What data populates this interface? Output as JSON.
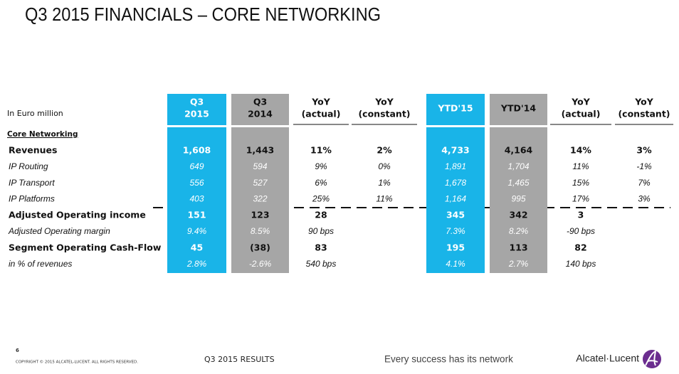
{
  "title": "Q3 2015 FINANCIALS – CORE NETWORKING",
  "unit_label": "In Euro million",
  "columns": [
    [
      "Q3",
      "2015"
    ],
    [
      "Q3",
      "2014"
    ],
    [
      "YoY",
      "(actual)"
    ],
    [
      "YoY",
      "(constant)"
    ],
    [
      "YTD'15"
    ],
    [
      "YTD'14"
    ],
    [
      "YoY",
      "(actual)"
    ],
    [
      "YoY",
      "(constant)"
    ]
  ],
  "section_label": "Core Networking",
  "rows": [
    {
      "label": "Revenues",
      "cells": [
        "1,608",
        "1,443",
        "11%",
        "2%",
        "4,733",
        "4,164",
        "14%",
        "3%"
      ]
    },
    {
      "label": "IP Routing",
      "cells": [
        "649",
        "594",
        "9%",
        "0%",
        "1,891",
        "1,704",
        "11%",
        "-1%"
      ]
    },
    {
      "label": "IP Transport",
      "cells": [
        "556",
        "527",
        "6%",
        "1%",
        "1,678",
        "1,465",
        "15%",
        "7%"
      ]
    },
    {
      "label": "IP Platforms",
      "cells": [
        "403",
        "322",
        "25%",
        "11%",
        "1,164",
        "995",
        "17%",
        "3%"
      ]
    },
    {
      "label": "Adjusted Operating income",
      "cells": [
        "151",
        "123",
        "28",
        null,
        "345",
        "342",
        "3",
        null
      ]
    },
    {
      "label": "Adjusted Operating margin",
      "cells": [
        "9.4%",
        "8.5%",
        "90 bps",
        null,
        "7.3%",
        "8.2%",
        "-90 bps",
        null
      ]
    },
    {
      "label": "Segment Operating Cash-Flow",
      "cells": [
        "45",
        "(38)",
        "83",
        null,
        "195",
        "113",
        "82",
        null
      ]
    },
    {
      "label": "in % of revenues",
      "cells": [
        "2.8%",
        "-2.6%",
        "540 bps",
        null,
        "4.1%",
        "2.7%",
        "140 bps",
        null
      ]
    }
  ],
  "footer": {
    "page_number": "6",
    "copyright": "COPYRIGHT © 2015 ALCATEL-LUCENT. ALL RIGHTS RESERVED.",
    "section": "Q3 2015 RESULTS",
    "tagline": "Every success has its network",
    "brand": "Alcatel·Lucent"
  }
}
